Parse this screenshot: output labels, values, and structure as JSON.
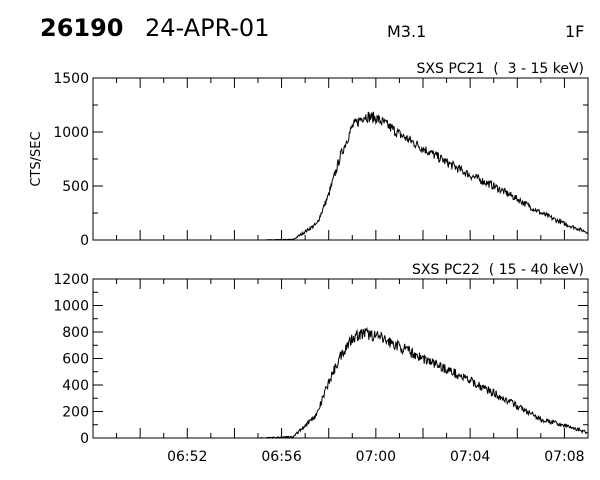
{
  "header": {
    "event_id": "26190",
    "date": "24-APR-01",
    "goes_class": "M3.1",
    "optical_class": "1F"
  },
  "chart_data": [
    {
      "type": "line",
      "title": "SXS PC21  (  3 - 15 keV)",
      "ylabel": "CTS/SEC",
      "xlabel": "",
      "xlim": [
        "06:48",
        "07:09"
      ],
      "ylim": [
        0,
        1500
      ],
      "yticks": [
        0,
        500,
        1000,
        1500
      ],
      "ytick_labels": [
        "0",
        "500",
        "1000",
        "1500"
      ],
      "xticks": [
        "06:52",
        "06:56",
        "07:00",
        "07:04",
        "07:08"
      ],
      "grid": false,
      "series": [
        {
          "x": [
            "06:49:00",
            "06:52:00",
            "06:55:00",
            "06:56:30",
            "06:57:30",
            "06:58:00",
            "06:58:30",
            "06:59:00",
            "06:59:30",
            "07:00:00",
            "07:00:30",
            "07:01:00",
            "07:02:00",
            "07:03:00",
            "07:04:00",
            "07:05:00",
            "07:06:00",
            "07:07:00",
            "07:08:00",
            "07:09:00"
          ],
          "y": [
            0,
            0,
            0,
            5,
            150,
            420,
            780,
            1050,
            1150,
            1130,
            1060,
            980,
            850,
            720,
            600,
            500,
            380,
            250,
            150,
            70
          ]
        }
      ]
    },
    {
      "type": "line",
      "title": "SXS PC22  ( 15 - 40 keV)",
      "ylabel": "",
      "xlabel": "",
      "xlim": [
        "06:48",
        "07:09"
      ],
      "ylim": [
        0,
        1200
      ],
      "yticks": [
        0,
        200,
        400,
        600,
        800,
        1000,
        1200
      ],
      "ytick_labels": [
        "0",
        "200",
        "400",
        "600",
        "800",
        "1000",
        "1200"
      ],
      "xticks": [
        "06:52",
        "06:56",
        "07:00",
        "07:04",
        "07:08"
      ],
      "grid": false,
      "series": [
        {
          "x": [
            "06:49:00",
            "06:52:00",
            "06:55:00",
            "06:56:30",
            "06:57:30",
            "06:58:00",
            "06:58:30",
            "06:59:00",
            "06:59:30",
            "07:00:00",
            "07:00:30",
            "07:01:00",
            "07:02:00",
            "07:03:00",
            "07:04:00",
            "07:05:00",
            "07:06:00",
            "07:07:00",
            "07:08:00",
            "07:09:00"
          ],
          "y": [
            0,
            0,
            0,
            10,
            180,
            420,
            620,
            760,
            790,
            770,
            730,
            690,
            600,
            520,
            430,
            340,
            240,
            140,
            95,
            40
          ]
        }
      ]
    }
  ]
}
